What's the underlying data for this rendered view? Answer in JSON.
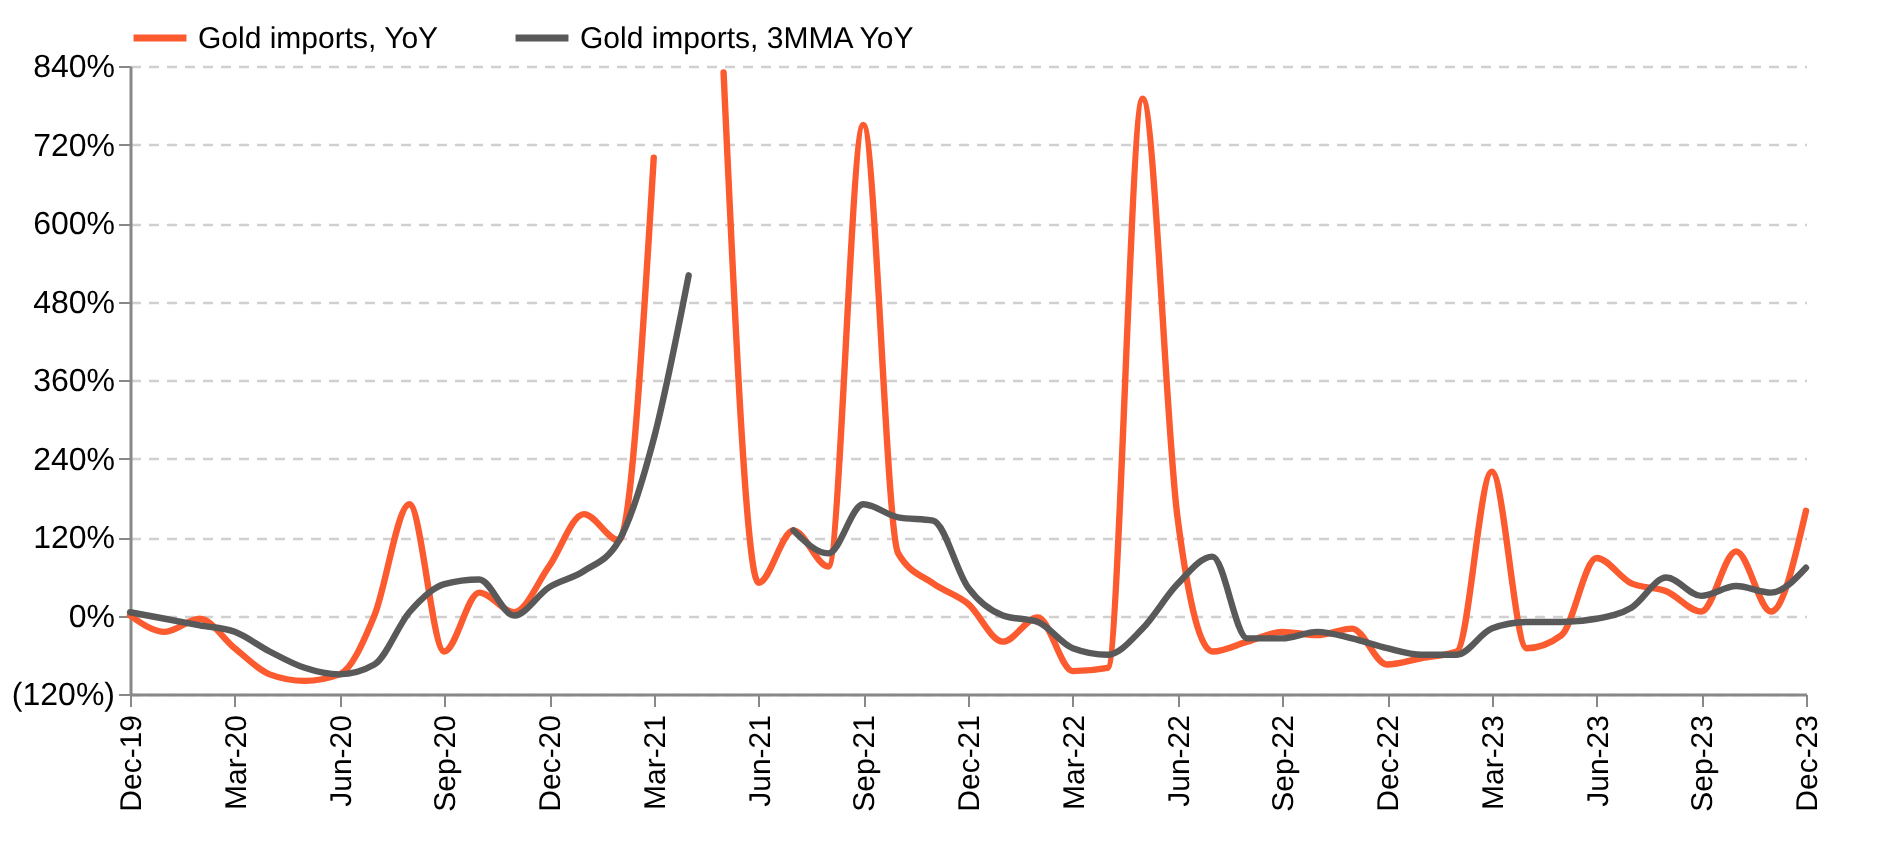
{
  "chart_data": {
    "type": "line",
    "categories": [
      "Dec-19",
      null,
      null,
      "Mar-20",
      null,
      null,
      "Jun-20",
      null,
      null,
      "Sep-20",
      null,
      null,
      "Dec-20",
      null,
      null,
      "Mar-21",
      null,
      null,
      "Jun-21",
      null,
      null,
      "Sep-21",
      null,
      null,
      "Dec-21",
      null,
      null,
      "Mar-22",
      null,
      null,
      "Jun-22",
      null,
      null,
      "Sep-22",
      null,
      null,
      "Dec-22",
      null,
      null,
      "Mar-23",
      null,
      null,
      "Jun-23",
      null,
      null,
      "Sep-23",
      null,
      null,
      "Dec-23"
    ],
    "series": [
      {
        "name": "Gold imports, YoY",
        "color": "#fc5a2f",
        "values": [
          0,
          -25,
          -5,
          -50,
          -90,
          -100,
          -90,
          0,
          170,
          -55,
          35,
          5,
          75,
          155,
          115,
          700,
          null,
          830,
          50,
          130,
          75,
          750,
          95,
          49,
          18,
          -40,
          -3,
          -85,
          -80,
          790,
          150,
          -55,
          -40,
          -25,
          -30,
          -20,
          -75,
          -65,
          -55,
          220,
          -50,
          -30,
          88,
          49,
          37,
          6,
          98,
          6,
          160
        ]
      },
      {
        "name": "Gold imports, 3MMA YoY",
        "color": "#595959",
        "values": [
          5,
          -5,
          -15,
          -25,
          -55,
          -80,
          -90,
          -75,
          5,
          48,
          55,
          0,
          43,
          68,
          114,
          270,
          520,
          null,
          null,
          130,
          95,
          170,
          150,
          145,
          43,
          0,
          -10,
          -50,
          -60,
          -20,
          48,
          90,
          -35,
          -35,
          -25,
          -35,
          -50,
          -60,
          -60,
          -20,
          -10,
          -10,
          -5,
          12,
          58,
          30,
          45,
          35,
          73
        ]
      }
    ],
    "ylim": [
      -120,
      840
    ],
    "yticks": [
      {
        "value": -120,
        "label": "(120%)"
      },
      {
        "value": 0,
        "label": "0%"
      },
      {
        "value": 120,
        "label": "120%"
      },
      {
        "value": 240,
        "label": "240%"
      },
      {
        "value": 360,
        "label": "360%"
      },
      {
        "value": 480,
        "label": "480%"
      },
      {
        "value": 600,
        "label": "600%"
      },
      {
        "value": 720,
        "label": "720%"
      },
      {
        "value": 840,
        "label": "840%"
      }
    ],
    "grid": "y",
    "legend": "top",
    "line_style": "solid",
    "marker": "none"
  }
}
